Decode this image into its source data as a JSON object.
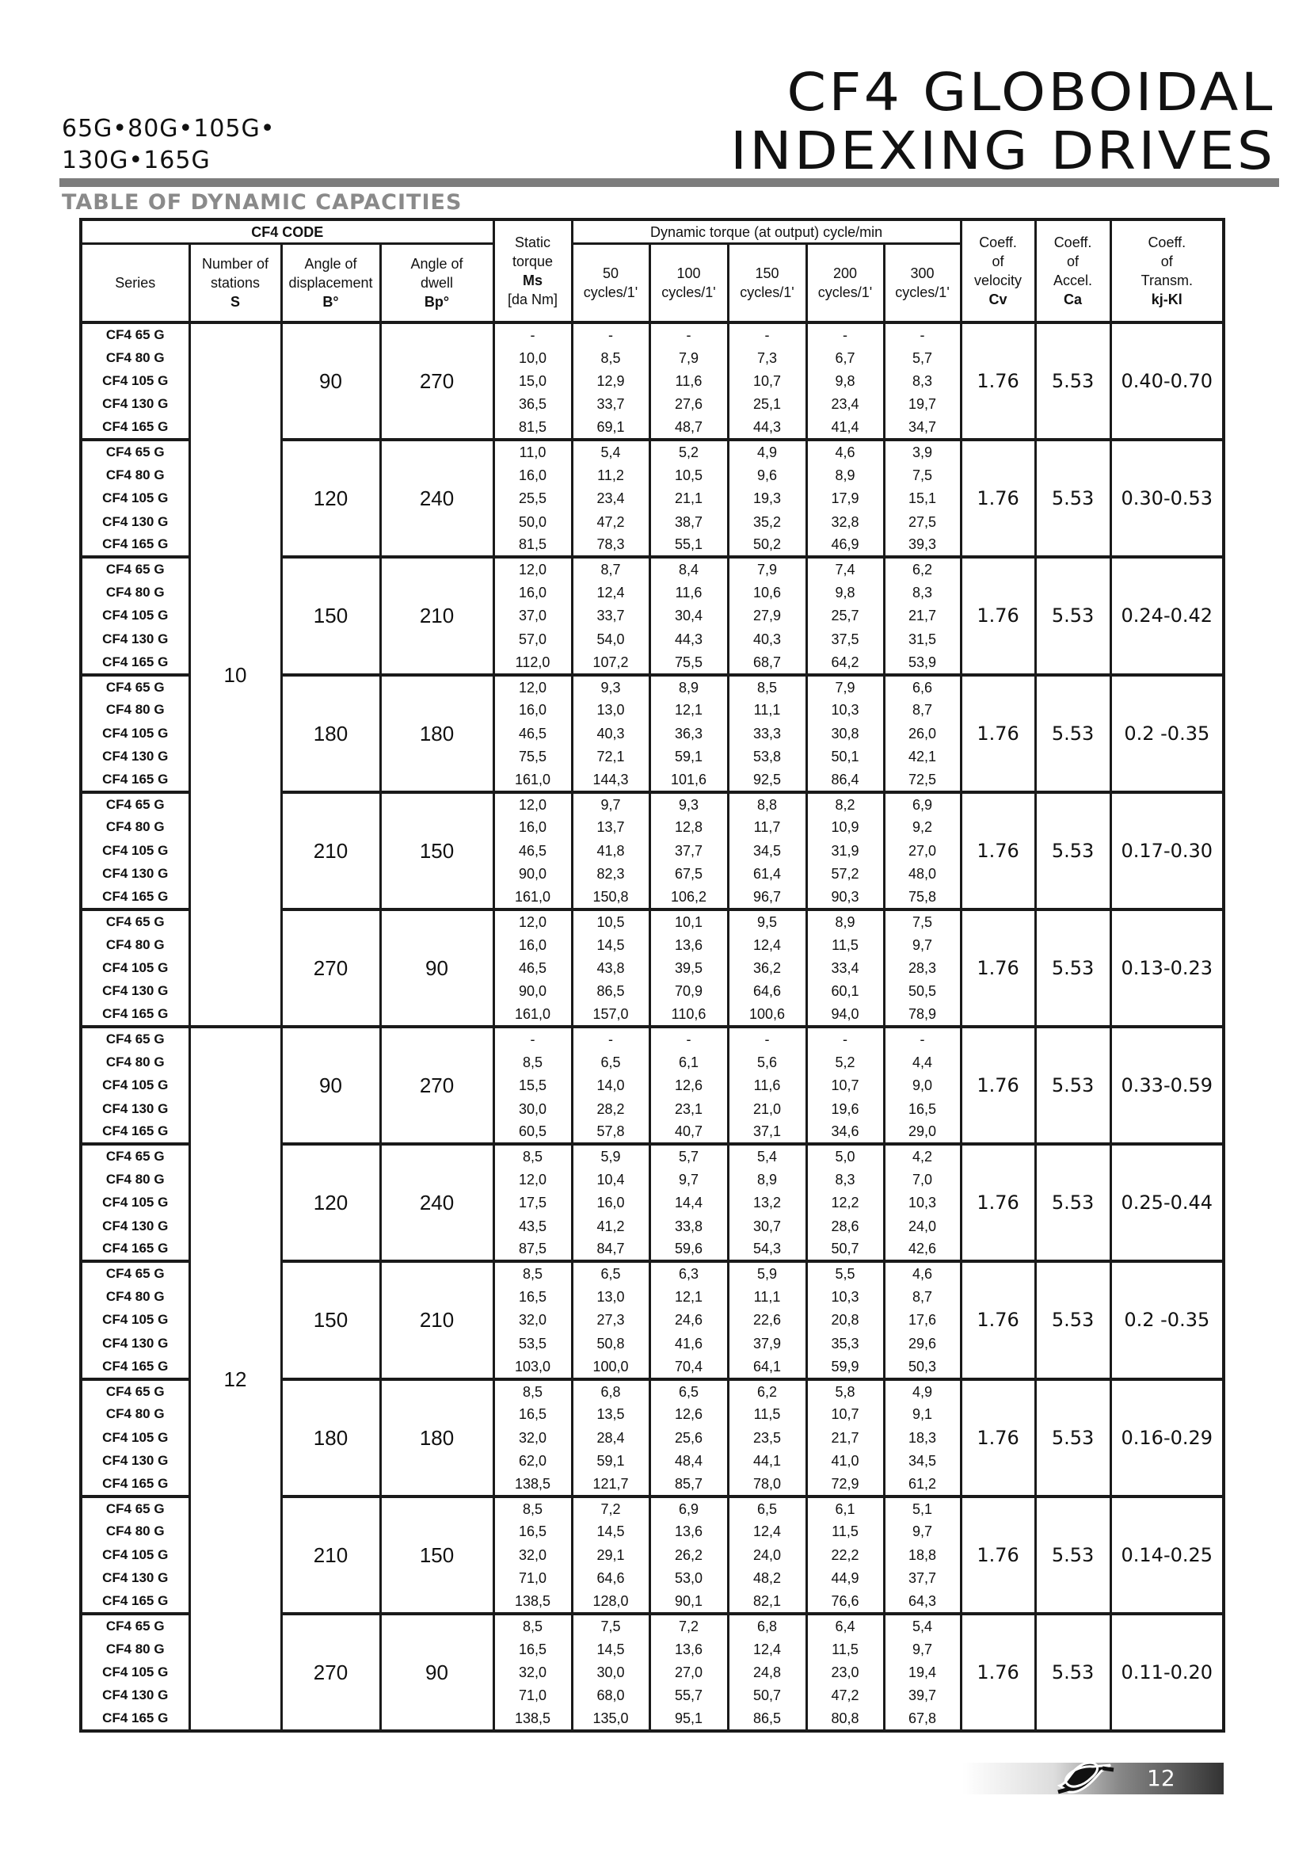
{
  "header": {
    "title_line1": "CF4 GLOBOIDAL",
    "title_line2": "INDEXING DRIVES",
    "models_line1": "65G•80G•105G•",
    "models_line2": "130G•165G",
    "section_title": "TABLE OF DYNAMIC CAPACITIES"
  },
  "table": {
    "headers": {
      "cf4_code": "CF4 CODE",
      "dynamic_torque": "Dynamic torque (at output) cycle/min",
      "series": "Series",
      "stations": [
        "Number of",
        "stations",
        "S"
      ],
      "displacement": [
        "Angle of",
        "displacement",
        "B°"
      ],
      "dwell": [
        "Angle of",
        "dwell",
        "Bp°"
      ],
      "static": [
        "Static",
        "torque",
        "Ms",
        "[da Nm]"
      ],
      "cycles": [
        [
          "50",
          "cycles/1'"
        ],
        [
          "100",
          "cycles/1'"
        ],
        [
          "150",
          "cycles/1'"
        ],
        [
          "200",
          "cycles/1'"
        ],
        [
          "300",
          "cycles/1'"
        ]
      ],
      "cv": [
        "Coeff.",
        "of",
        "velocity",
        "Cv"
      ],
      "ca": [
        "Coeff.",
        "of",
        "Accel.",
        "Ca"
      ],
      "kj": [
        "Coeff.",
        "of",
        "Transm.",
        "kj-Kl"
      ]
    },
    "station_groups": [
      {
        "stations": "10",
        "blocks": [
          {
            "displacement": "90",
            "dwell": "270",
            "cv": "1.76",
            "ca": "5.53",
            "kj": "0.40-0.70",
            "rows": [
              [
                "CF4 65 G",
                "-",
                "-",
                "-",
                "-",
                "-",
                "-"
              ],
              [
                "CF4 80 G",
                "10,0",
                "8,5",
                "7,9",
                "7,3",
                "6,7",
                "5,7"
              ],
              [
                "CF4 105 G",
                "15,0",
                "12,9",
                "11,6",
                "10,7",
                "9,8",
                "8,3"
              ],
              [
                "CF4 130 G",
                "36,5",
                "33,7",
                "27,6",
                "25,1",
                "23,4",
                "19,7"
              ],
              [
                "CF4 165 G",
                "81,5",
                "69,1",
                "48,7",
                "44,3",
                "41,4",
                "34,7"
              ]
            ]
          },
          {
            "displacement": "120",
            "dwell": "240",
            "cv": "1.76",
            "ca": "5.53",
            "kj": "0.30-0.53",
            "rows": [
              [
                "CF4 65 G",
                "11,0",
                "5,4",
                "5,2",
                "4,9",
                "4,6",
                "3,9"
              ],
              [
                "CF4 80 G",
                "16,0",
                "11,2",
                "10,5",
                "9,6",
                "8,9",
                "7,5"
              ],
              [
                "CF4 105 G",
                "25,5",
                "23,4",
                "21,1",
                "19,3",
                "17,9",
                "15,1"
              ],
              [
                "CF4 130 G",
                "50,0",
                "47,2",
                "38,7",
                "35,2",
                "32,8",
                "27,5"
              ],
              [
                "CF4 165 G",
                "81,5",
                "78,3",
                "55,1",
                "50,2",
                "46,9",
                "39,3"
              ]
            ]
          },
          {
            "displacement": "150",
            "dwell": "210",
            "cv": "1.76",
            "ca": "5.53",
            "kj": "0.24-0.42",
            "rows": [
              [
                "CF4 65 G",
                "12,0",
                "8,7",
                "8,4",
                "7,9",
                "7,4",
                "6,2"
              ],
              [
                "CF4 80 G",
                "16,0",
                "12,4",
                "11,6",
                "10,6",
                "9,8",
                "8,3"
              ],
              [
                "CF4 105 G",
                "37,0",
                "33,7",
                "30,4",
                "27,9",
                "25,7",
                "21,7"
              ],
              [
                "CF4 130 G",
                "57,0",
                "54,0",
                "44,3",
                "40,3",
                "37,5",
                "31,5"
              ],
              [
                "CF4 165 G",
                "112,0",
                "107,2",
                "75,5",
                "68,7",
                "64,2",
                "53,9"
              ]
            ]
          },
          {
            "displacement": "180",
            "dwell": "180",
            "cv": "1.76",
            "ca": "5.53",
            "kj": "0.2 -0.35",
            "rows": [
              [
                "CF4 65 G",
                "12,0",
                "9,3",
                "8,9",
                "8,5",
                "7,9",
                "6,6"
              ],
              [
                "CF4 80 G",
                "16,0",
                "13,0",
                "12,1",
                "11,1",
                "10,3",
                "8,7"
              ],
              [
                "CF4 105 G",
                "46,5",
                "40,3",
                "36,3",
                "33,3",
                "30,8",
                "26,0"
              ],
              [
                "CF4 130 G",
                "75,5",
                "72,1",
                "59,1",
                "53,8",
                "50,1",
                "42,1"
              ],
              [
                "CF4 165 G",
                "161,0",
                "144,3",
                "101,6",
                "92,5",
                "86,4",
                "72,5"
              ]
            ]
          },
          {
            "displacement": "210",
            "dwell": "150",
            "cv": "1.76",
            "ca": "5.53",
            "kj": "0.17-0.30",
            "rows": [
              [
                "CF4 65 G",
                "12,0",
                "9,7",
                "9,3",
                "8,8",
                "8,2",
                "6,9"
              ],
              [
                "CF4 80 G",
                "16,0",
                "13,7",
                "12,8",
                "11,7",
                "10,9",
                "9,2"
              ],
              [
                "CF4 105 G",
                "46,5",
                "41,8",
                "37,7",
                "34,5",
                "31,9",
                "27,0"
              ],
              [
                "CF4 130 G",
                "90,0",
                "82,3",
                "67,5",
                "61,4",
                "57,2",
                "48,0"
              ],
              [
                "CF4 165 G",
                "161,0",
                "150,8",
                "106,2",
                "96,7",
                "90,3",
                "75,8"
              ]
            ]
          },
          {
            "displacement": "270",
            "dwell": "90",
            "cv": "1.76",
            "ca": "5.53",
            "kj": "0.13-0.23",
            "rows": [
              [
                "CF4 65 G",
                "12,0",
                "10,5",
                "10,1",
                "9,5",
                "8,9",
                "7,5"
              ],
              [
                "CF4 80 G",
                "16,0",
                "14,5",
                "13,6",
                "12,4",
                "11,5",
                "9,7"
              ],
              [
                "CF4 105 G",
                "46,5",
                "43,8",
                "39,5",
                "36,2",
                "33,4",
                "28,3"
              ],
              [
                "CF4 130 G",
                "90,0",
                "86,5",
                "70,9",
                "64,6",
                "60,1",
                "50,5"
              ],
              [
                "CF4 165 G",
                "161,0",
                "157,0",
                "110,6",
                "100,6",
                "94,0",
                "78,9"
              ]
            ]
          }
        ]
      },
      {
        "stations": "12",
        "blocks": [
          {
            "displacement": "90",
            "dwell": "270",
            "cv": "1.76",
            "ca": "5.53",
            "kj": "0.33-0.59",
            "rows": [
              [
                "CF4 65 G",
                "-",
                "-",
                "-",
                "-",
                "-",
                "-"
              ],
              [
                "CF4 80 G",
                "8,5",
                "6,5",
                "6,1",
                "5,6",
                "5,2",
                "4,4"
              ],
              [
                "CF4 105 G",
                "15,5",
                "14,0",
                "12,6",
                "11,6",
                "10,7",
                "9,0"
              ],
              [
                "CF4 130 G",
                "30,0",
                "28,2",
                "23,1",
                "21,0",
                "19,6",
                "16,5"
              ],
              [
                "CF4 165 G",
                "60,5",
                "57,8",
                "40,7",
                "37,1",
                "34,6",
                "29,0"
              ]
            ]
          },
          {
            "displacement": "120",
            "dwell": "240",
            "cv": "1.76",
            "ca": "5.53",
            "kj": "0.25-0.44",
            "rows": [
              [
                "CF4 65 G",
                "8,5",
                "5,9",
                "5,7",
                "5,4",
                "5,0",
                "4,2"
              ],
              [
                "CF4 80 G",
                "12,0",
                "10,4",
                "9,7",
                "8,9",
                "8,3",
                "7,0"
              ],
              [
                "CF4 105 G",
                "17,5",
                "16,0",
                "14,4",
                "13,2",
                "12,2",
                "10,3"
              ],
              [
                "CF4 130 G",
                "43,5",
                "41,2",
                "33,8",
                "30,7",
                "28,6",
                "24,0"
              ],
              [
                "CF4 165 G",
                "87,5",
                "84,7",
                "59,6",
                "54,3",
                "50,7",
                "42,6"
              ]
            ]
          },
          {
            "displacement": "150",
            "dwell": "210",
            "cv": "1.76",
            "ca": "5.53",
            "kj": "0.2 -0.35",
            "rows": [
              [
                "CF4 65 G",
                "8,5",
                "6,5",
                "6,3",
                "5,9",
                "5,5",
                "4,6"
              ],
              [
                "CF4 80 G",
                "16,5",
                "13,0",
                "12,1",
                "11,1",
                "10,3",
                "8,7"
              ],
              [
                "CF4 105 G",
                "32,0",
                "27,3",
                "24,6",
                "22,6",
                "20,8",
                "17,6"
              ],
              [
                "CF4 130 G",
                "53,5",
                "50,8",
                "41,6",
                "37,9",
                "35,3",
                "29,6"
              ],
              [
                "CF4 165 G",
                "103,0",
                "100,0",
                "70,4",
                "64,1",
                "59,9",
                "50,3"
              ]
            ]
          },
          {
            "displacement": "180",
            "dwell": "180",
            "cv": "1.76",
            "ca": "5.53",
            "kj": "0.16-0.29",
            "rows": [
              [
                "CF4 65 G",
                "8,5",
                "6,8",
                "6,5",
                "6,2",
                "5,8",
                "4,9"
              ],
              [
                "CF4 80 G",
                "16,5",
                "13,5",
                "12,6",
                "11,5",
                "10,7",
                "9,1"
              ],
              [
                "CF4 105 G",
                "32,0",
                "28,4",
                "25,6",
                "23,5",
                "21,7",
                "18,3"
              ],
              [
                "CF4 130 G",
                "62,0",
                "59,1",
                "48,4",
                "44,1",
                "41,0",
                "34,5"
              ],
              [
                "CF4 165 G",
                "138,5",
                "121,7",
                "85,7",
                "78,0",
                "72,9",
                "61,2"
              ]
            ]
          },
          {
            "displacement": "210",
            "dwell": "150",
            "cv": "1.76",
            "ca": "5.53",
            "kj": "0.14-0.25",
            "rows": [
              [
                "CF4 65 G",
                "8,5",
                "7,2",
                "6,9",
                "6,5",
                "6,1",
                "5,1"
              ],
              [
                "CF4 80 G",
                "16,5",
                "14,5",
                "13,6",
                "12,4",
                "11,5",
                "9,7"
              ],
              [
                "CF4 105 G",
                "32,0",
                "29,1",
                "26,2",
                "24,0",
                "22,2",
                "18,8"
              ],
              [
                "CF4 130 G",
                "71,0",
                "64,6",
                "53,0",
                "48,2",
                "44,9",
                "37,7"
              ],
              [
                "CF4 165 G",
                "138,5",
                "128,0",
                "90,1",
                "82,1",
                "76,6",
                "64,3"
              ]
            ]
          },
          {
            "displacement": "270",
            "dwell": "90",
            "cv": "1.76",
            "ca": "5.53",
            "kj": "0.11-0.20",
            "rows": [
              [
                "CF4 65 G",
                "8,5",
                "7,5",
                "7,2",
                "6,8",
                "6,4",
                "5,4"
              ],
              [
                "CF4 80 G",
                "16,5",
                "14,5",
                "13,6",
                "12,4",
                "11,5",
                "9,7"
              ],
              [
                "CF4 105 G",
                "32,0",
                "30,0",
                "27,0",
                "24,8",
                "23,0",
                "19,4"
              ],
              [
                "CF4 130 G",
                "71,0",
                "68,0",
                "55,7",
                "50,7",
                "47,2",
                "39,7"
              ],
              [
                "CF4 165 G",
                "138,5",
                "135,0",
                "95,1",
                "86,5",
                "80,8",
                "67,8"
              ]
            ]
          }
        ]
      }
    ]
  },
  "footer": {
    "page_number": "12",
    "logo_icon": "company-logo-knot"
  }
}
